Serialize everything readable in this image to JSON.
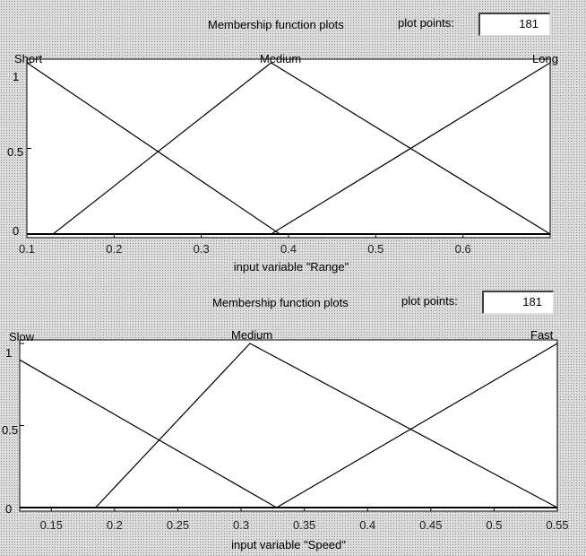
{
  "panels": [
    {
      "header": {
        "title": "Membership function plots",
        "plot_points_label": "plot points:",
        "plot_points_value": "181"
      },
      "chart_data": {
        "type": "line",
        "xlabel": "input variable \"Range\"",
        "xlim": [
          0.1,
          0.7
        ],
        "ylim": [
          0,
          1
        ],
        "xticks": [
          "0.1",
          "0.2",
          "0.3",
          "0.4",
          "0.5",
          "0.6"
        ],
        "xtick_values": [
          0.1,
          0.2,
          0.3,
          0.4,
          0.5,
          0.6
        ],
        "yticks": [
          "0",
          "0.5",
          "1"
        ],
        "ytick_values": [
          0,
          0.5,
          1
        ],
        "series": [
          {
            "name": "Short",
            "x": [
              0.1,
              0.39
            ],
            "y": [
              1,
              0
            ]
          },
          {
            "name": "Medium",
            "x": [
              0.13,
              0.38,
              0.7
            ],
            "y": [
              0,
              1,
              0
            ]
          },
          {
            "name": "Long",
            "x": [
              0.38,
              0.7
            ],
            "y": [
              0,
              1
            ]
          }
        ],
        "baseline": {
          "x": [
            0.1,
            0.7
          ],
          "y": [
            0,
            0
          ]
        }
      }
    },
    {
      "header": {
        "title": "Membership function plots",
        "plot_points_label": "plot points:",
        "plot_points_value": "181"
      },
      "chart_data": {
        "type": "line",
        "xlabel": "input variable \"Speed\"",
        "xlim": [
          0.125,
          0.55
        ],
        "ylim": [
          0,
          1
        ],
        "xticks": [
          "0.15",
          "0.2",
          "0.25",
          "0.3",
          "0.35",
          "0.4",
          "0.45",
          "0.5",
          "0.55"
        ],
        "xtick_values": [
          0.15,
          0.2,
          0.25,
          0.3,
          0.35,
          0.4,
          0.45,
          0.5,
          0.55
        ],
        "yticks": [
          "0",
          "0.5",
          "1"
        ],
        "ytick_values": [
          0,
          0.5,
          1
        ],
        "series": [
          {
            "name": "Slow",
            "x": [
              0.125,
              0.328
            ],
            "y": [
              0.9,
              0
            ]
          },
          {
            "name": "Medium",
            "x": [
              0.185,
              0.307,
              0.55
            ],
            "y": [
              0,
              1,
              0
            ]
          },
          {
            "name": "Fast",
            "x": [
              0.328,
              0.55
            ],
            "y": [
              0,
              1
            ]
          }
        ],
        "baseline": {
          "x": [
            0.125,
            0.55
          ],
          "y": [
            0,
            0
          ]
        }
      }
    }
  ]
}
